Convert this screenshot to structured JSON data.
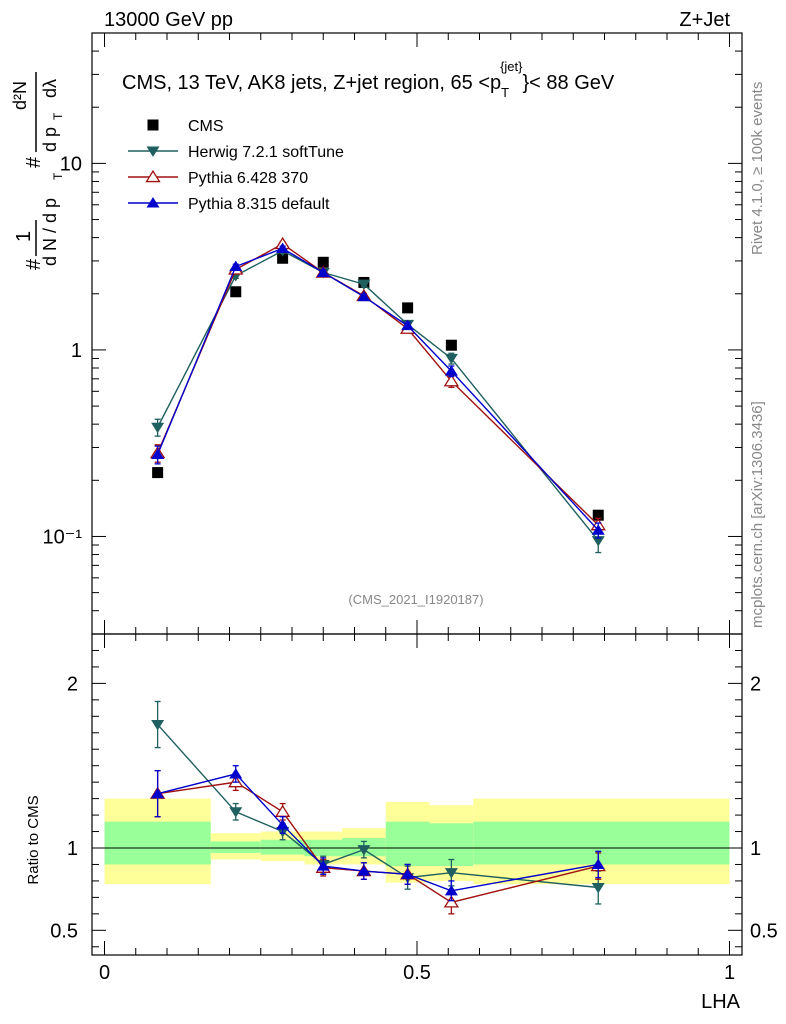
{
  "header": {
    "left": "13000 GeV pp",
    "right": "Z+Jet"
  },
  "side_labels": {
    "rivet": "Rivet 4.1.0, ≥ 100k events",
    "mcplots": "mcplots.cern.ch [arXiv:1306.3436]"
  },
  "colors": {
    "CMS": "#000000",
    "Herwig": "#1f5f5f",
    "Pythia6": "#a01010",
    "Pythia8": "#0000cc",
    "band_stat": "#99ff99",
    "band_total": "#ffff99"
  },
  "chart_data": [
    {
      "type": "scatter",
      "title": "CMS, 13 TeV, AK8 jets, Z+jet region, 65 < p_T^{jet} < 88 GeV",
      "title_parts": {
        "a": "CMS, 13 TeV, AK8 jets, Z+jet region, 65 <p",
        "sub": "T",
        "sup": "{jet}",
        "b": "}< 88 GeV"
      },
      "watermark": "(CMS_2021_I1920187)",
      "ylabel": "1/N dN/dpT dλ",
      "ylabel_parts": {
        "hash": "#",
        "one": "1",
        "dn": "d N / d p",
        "t": "T",
        "num": "d²N",
        "den": "d p",
        "dlam": "dλ"
      },
      "yscale": "log",
      "ylim": [
        0.03,
        50
      ],
      "xlim": [
        -0.02,
        1.02
      ],
      "ytick_labels": [
        "10⁻¹",
        "1",
        "10"
      ],
      "legend_position": "top-left",
      "x": [
        0.085,
        0.21,
        0.285,
        0.35,
        0.415,
        0.485,
        0.555,
        0.79
      ],
      "series": [
        {
          "name": "CMS",
          "marker": "square",
          "values": [
            0.22,
            2.05,
            3.1,
            2.95,
            2.3,
            1.68,
            1.06,
            0.13
          ],
          "errors": [
            0,
            0,
            0,
            0,
            0,
            0,
            0,
            0
          ]
        },
        {
          "name": "Herwig 7.2.1 softTune",
          "marker": "triangle-down",
          "values": [
            0.385,
            2.5,
            3.4,
            2.6,
            2.25,
            1.37,
            0.9,
            0.095
          ],
          "errors": [
            0.04,
            0.08,
            0.1,
            0.08,
            0.07,
            0.06,
            0.06,
            0.013
          ]
        },
        {
          "name": "Pythia 6.428 370",
          "marker": "triangle-open",
          "values": [
            0.28,
            2.7,
            3.7,
            2.6,
            1.95,
            1.3,
            0.68,
            0.115
          ],
          "errors": [
            0.03,
            0.08,
            0.1,
            0.08,
            0.06,
            0.06,
            0.05,
            0.01
          ]
        },
        {
          "name": "Pythia 8.315 default",
          "marker": "triangle-up",
          "values": [
            0.275,
            2.8,
            3.5,
            2.6,
            1.93,
            1.35,
            0.77,
            0.108
          ],
          "errors": [
            0.03,
            0.08,
            0.1,
            0.08,
            0.06,
            0.06,
            0.05,
            0.01
          ]
        }
      ]
    },
    {
      "type": "scatter",
      "ylabel": "Ratio to CMS",
      "xlabel": "LHA",
      "ylim": [
        0.35,
        2.3
      ],
      "xlim": [
        -0.02,
        1.02
      ],
      "ytick_labels": [
        "0.5",
        "1",
        "2"
      ],
      "xtick_labels": [
        "0",
        "0.5",
        "1"
      ],
      "x": [
        0.085,
        0.21,
        0.285,
        0.35,
        0.415,
        0.485,
        0.555,
        0.79
      ],
      "bands": {
        "edges": [
          0.0,
          0.17,
          0.25,
          0.32,
          0.38,
          0.45,
          0.52,
          0.59,
          1.0
        ],
        "total_low": [
          0.78,
          0.93,
          0.92,
          0.9,
          0.9,
          0.79,
          0.8,
          0.78
        ],
        "total_high": [
          1.3,
          1.09,
          1.1,
          1.1,
          1.12,
          1.28,
          1.26,
          1.3
        ],
        "stat_low": [
          0.9,
          0.97,
          0.96,
          0.95,
          0.95,
          0.89,
          0.89,
          0.9
        ],
        "stat_high": [
          1.16,
          1.04,
          1.05,
          1.05,
          1.06,
          1.16,
          1.15,
          1.16
        ]
      },
      "series": [
        {
          "name": "Herwig 7.2.1 softTune",
          "marker": "triangle-down",
          "values": [
            1.75,
            1.22,
            1.1,
            0.9,
            0.99,
            0.82,
            0.85,
            0.76
          ],
          "errors": [
            0.14,
            0.05,
            0.05,
            0.05,
            0.05,
            0.07,
            0.08,
            0.1
          ]
        },
        {
          "name": "Pythia 6.428 370",
          "marker": "triangle-open",
          "values": [
            1.33,
            1.4,
            1.22,
            0.88,
            0.86,
            0.84,
            0.67,
            0.89
          ],
          "errors": [
            0.14,
            0.05,
            0.05,
            0.05,
            0.05,
            0.06,
            0.07,
            0.08
          ]
        },
        {
          "name": "Pythia 8.315 default",
          "marker": "triangle-up",
          "values": [
            1.33,
            1.45,
            1.14,
            0.89,
            0.86,
            0.84,
            0.74,
            0.9
          ],
          "errors": [
            0.14,
            0.05,
            0.05,
            0.05,
            0.05,
            0.06,
            0.06,
            0.08
          ]
        }
      ]
    }
  ]
}
